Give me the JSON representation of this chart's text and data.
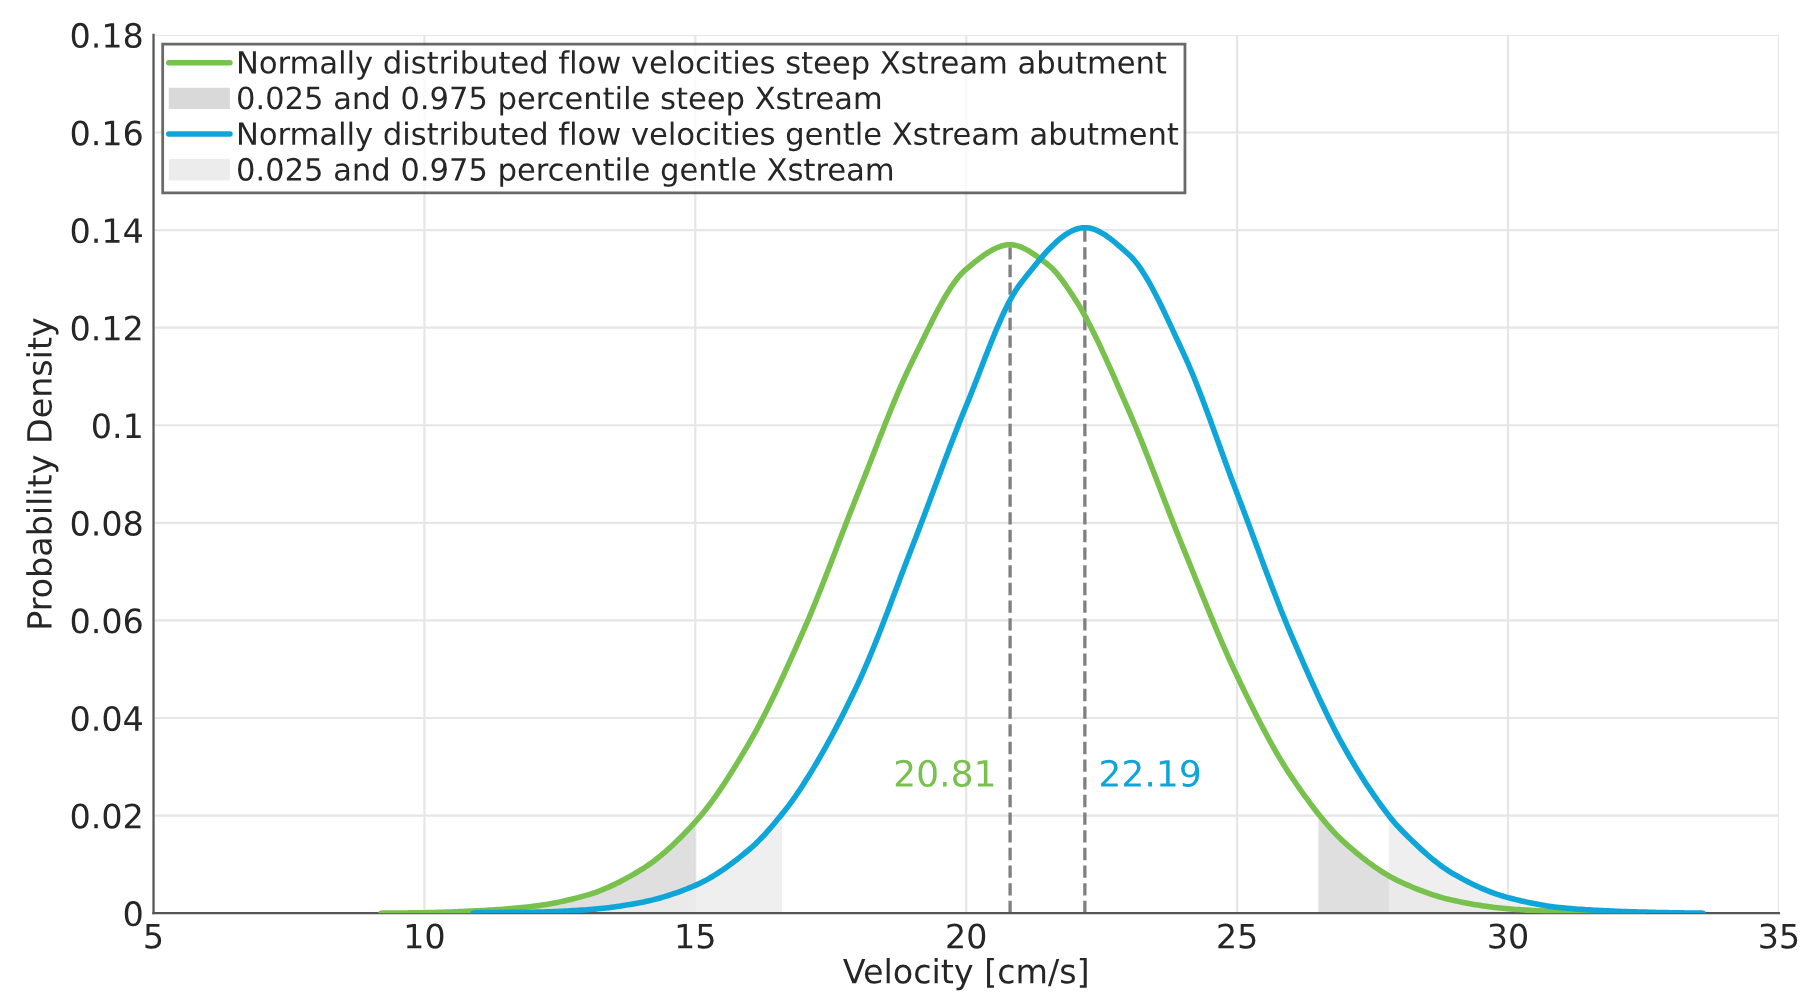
{
  "chart_data": {
    "type": "line",
    "xlabel": "Velocity [cm/s]",
    "ylabel": "Probability Density",
    "xlim": [
      5,
      35
    ],
    "xticks": [
      5,
      10,
      15,
      20,
      25,
      30,
      35
    ],
    "ylim": [
      0,
      0.18
    ],
    "yticks": [
      0,
      0.02,
      0.04,
      0.06,
      0.08,
      0.1,
      0.12,
      0.14,
      0.16,
      0.18
    ],
    "grid": true,
    "legend": "top left",
    "marker": "none",
    "line_style": "solid",
    "series": [
      {
        "name": "Normally distributed flow velocities steep Xstream abutment",
        "color": "#77c14c",
        "x": [
          9.2,
          10,
          11,
          12,
          13,
          14,
          15,
          16,
          17,
          18,
          19,
          20,
          20.81,
          21.5,
          22,
          23,
          24,
          25,
          26,
          27,
          28,
          29,
          30,
          31,
          32,
          32.5
        ],
        "values": [
          0,
          0.0001,
          0.0005,
          0.0014,
          0.0037,
          0.0089,
          0.0187,
          0.035,
          0.058,
          0.086,
          0.113,
          0.132,
          0.137,
          0.133,
          0.126,
          0.103,
          0.075,
          0.0486,
          0.028,
          0.0143,
          0.0065,
          0.0026,
          0.0009,
          0.0003,
          0.0001,
          0
        ]
      },
      {
        "name": "0.025 and 0.975 percentile steep Xstream",
        "type": "area",
        "color": "#d9d9d9",
        "x": [
          9.2,
          10,
          11,
          12,
          13,
          14,
          15
        ],
        "values": [
          0,
          0.0001,
          0.0005,
          0.0014,
          0.0037,
          0.0089,
          0.0187
        ]
      },
      {
        "type": "area",
        "color": "#d9d9d9",
        "x": [
          26.5,
          27,
          28,
          29,
          30,
          31,
          32,
          32.5
        ],
        "values": [
          0.0203,
          0.0143,
          0.0065,
          0.0026,
          0.0009,
          0.0003,
          0.0001,
          0
        ]
      },
      {
        "name": "Normally distributed flow velocities gentle Xstream abutment",
        "color": "#0ea5d8",
        "x": [
          10.9,
          11,
          12,
          13,
          14,
          15,
          16,
          16.6,
          17,
          18,
          19,
          20,
          21,
          22.19,
          23,
          24,
          25,
          26,
          27,
          27.8,
          28,
          29,
          30,
          31,
          32,
          33,
          33.6
        ],
        "values": [
          0,
          0.0001,
          0.0002,
          0.0007,
          0.0022,
          0.0057,
          0.0131,
          0.0203,
          0.0265,
          0.047,
          0.075,
          0.104,
          0.129,
          0.1405,
          0.135,
          0.115,
          0.086,
          0.057,
          0.0335,
          0.02,
          0.0174,
          0.008,
          0.0032,
          0.0011,
          0.0004,
          0.0001,
          0
        ]
      },
      {
        "name": "0.025 and 0.975 percentile gentle Xstream",
        "type": "area",
        "color": "#ececec",
        "x": [
          10.9,
          11,
          12,
          13,
          14,
          15,
          16,
          16.6
        ],
        "values": [
          0,
          0.0001,
          0.0002,
          0.0007,
          0.0022,
          0.0057,
          0.0131,
          0.0203
        ]
      },
      {
        "type": "area",
        "color": "#ececec",
        "x": [
          27.8,
          28,
          29,
          30,
          31,
          32,
          33,
          33.6
        ],
        "values": [
          0.02,
          0.0174,
          0.008,
          0.0032,
          0.0011,
          0.0004,
          0.0001,
          0
        ]
      }
    ],
    "ref_lines": [
      {
        "axis": "x",
        "value": 20.81,
        "label": "20.81",
        "color": "#808080",
        "line_style": "dashed"
      },
      {
        "axis": "x",
        "value": 22.19,
        "label": "22.19",
        "color": "#808080",
        "line_style": "dashed"
      }
    ]
  }
}
